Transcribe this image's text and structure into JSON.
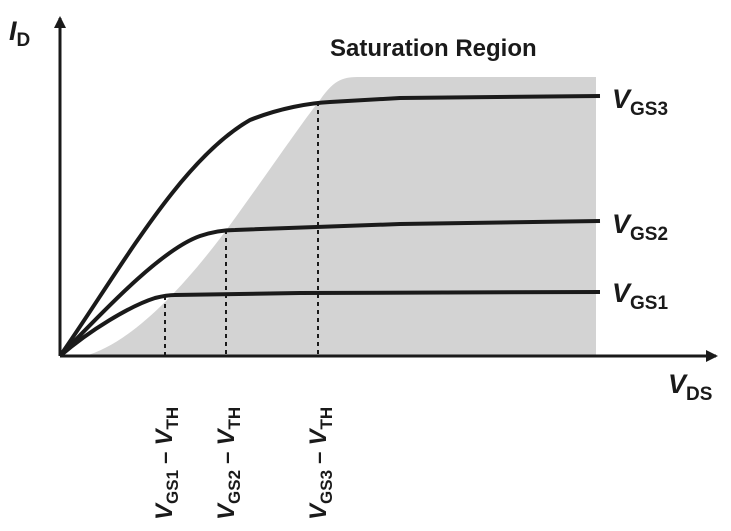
{
  "title": "Saturation Region",
  "axes": {
    "y": {
      "main": "I",
      "sub": "D"
    },
    "x": {
      "main": "V",
      "sub": "DS"
    }
  },
  "curves": [
    {
      "main": "V",
      "sub": "GS1"
    },
    {
      "main": "V",
      "sub": "GS2"
    },
    {
      "main": "V",
      "sub": "GS3"
    }
  ],
  "ticks": [
    {
      "v1": "V",
      "s1": "GS1",
      "dash": " – ",
      "v2": "V",
      "s2": "TH"
    },
    {
      "v1": "V",
      "s1": "GS2",
      "dash": " – ",
      "v2": "V",
      "s2": "TH"
    },
    {
      "v1": "V",
      "s1": "GS3",
      "dash": " – ",
      "v2": "V",
      "s2": "TH"
    }
  ],
  "colors": {
    "line": "#1a1a1a",
    "region": "#d3d3d3",
    "background": "#ffffff"
  }
}
